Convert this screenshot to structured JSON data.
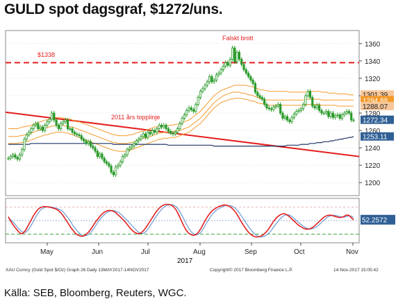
{
  "page": {
    "title": "GULD spot dagsgraf, $1272/uns.",
    "source": "Källa: SEB, Bloomberg, Reuters, WGC.",
    "footer_left": "XAU Curncy (Gold Spot $/Oz) Graph 26 Daily 13MAY2017-14NOV2017",
    "footer_mid": "Copyright© 2017 Bloomberg Finance L.P.",
    "footer_right": "14-Nov-2017 15:05:42"
  },
  "colors": {
    "candle": "#2a9a2a",
    "resistance": "#e41e1e",
    "trendline": "#e41e1e",
    "ma_band": "#f39a2b",
    "long_ma": "#1f3566",
    "stoch_k": "#e41e1e",
    "stoch_d": "#6a9ad0",
    "price_tag": "#2f5f95",
    "grid": "#cccccc"
  },
  "chart_data": [
    {
      "type": "candlestick",
      "ylim": [
        1185,
        1375
      ],
      "yticks": [
        1200,
        1220,
        1240,
        1260,
        1280,
        1300,
        1320,
        1340,
        1360
      ],
      "xticks": [
        "May",
        "Jun",
        "Jul",
        "Aug",
        "Sep",
        "Oct",
        "Nov"
      ],
      "xlabel_year": "2017",
      "annotations": {
        "resistance_label": "$1338",
        "resistance_value": 1338,
        "false_break_label": "Falskt brott",
        "trendline_label": "2011 års topplinje",
        "trendline": {
          "start": 1281,
          "end": 1230
        }
      },
      "price_tags": [
        {
          "label": "1301.39",
          "value": 1301.4
        },
        {
          "label": "1294.88",
          "value": 1294.9
        },
        {
          "label": "1288.07",
          "value": 1288.1
        },
        {
          "label": "1272.34",
          "value": 1272.3
        },
        {
          "label": "1253.11",
          "value": 1253.1
        }
      ],
      "series": {
        "close": [
          1228,
          1230,
          1232,
          1229,
          1227,
          1232,
          1238,
          1250,
          1255,
          1258,
          1262,
          1266,
          1268,
          1262,
          1264,
          1260,
          1266,
          1270,
          1273,
          1280,
          1272,
          1266,
          1262,
          1268,
          1270,
          1272,
          1262,
          1262,
          1258,
          1256,
          1255,
          1254,
          1250,
          1248,
          1245,
          1247,
          1242,
          1240,
          1236,
          1230,
          1233,
          1228,
          1224,
          1222,
          1219,
          1212,
          1209,
          1218,
          1220,
          1224,
          1230,
          1232,
          1238,
          1240,
          1242,
          1245,
          1248,
          1250,
          1253,
          1256,
          1252,
          1258,
          1256,
          1260,
          1258,
          1262,
          1266,
          1264,
          1266,
          1262,
          1259,
          1257,
          1256,
          1258,
          1262,
          1268,
          1274,
          1278,
          1283,
          1286,
          1284,
          1282,
          1290,
          1298,
          1305,
          1308,
          1312,
          1316,
          1322,
          1316,
          1318,
          1324,
          1326,
          1330,
          1334,
          1338,
          1335,
          1342,
          1355,
          1339,
          1350,
          1342,
          1336,
          1330,
          1326,
          1322,
          1318,
          1314,
          1304,
          1300,
          1298,
          1296,
          1290,
          1286,
          1285,
          1284,
          1287,
          1288,
          1290,
          1280,
          1274,
          1276,
          1272,
          1270,
          1275,
          1279,
          1282,
          1283,
          1285,
          1290,
          1300,
          1305,
          1298,
          1288,
          1286,
          1289,
          1283,
          1280,
          1280,
          1282,
          1276,
          1280,
          1275,
          1277,
          1278,
          1274,
          1278,
          1280,
          1282,
          1280,
          1272,
          1272
        ],
        "ma_upper": [
          1262,
          1262,
          1262,
          1262,
          1262,
          1263,
          1264,
          1264,
          1265,
          1265,
          1266,
          1267,
          1268,
          1269,
          1270,
          1271,
          1272,
          1272,
          1273,
          1274,
          1275,
          1275,
          1275,
          1275,
          1274,
          1274,
          1273,
          1273,
          1272,
          1271,
          1270,
          1270,
          1269,
          1268,
          1267,
          1266,
          1265,
          1264,
          1263,
          1262,
          1261,
          1260,
          1259,
          1258,
          1257,
          1256,
          1255,
          1255,
          1254,
          1254,
          1254,
          1254,
          1254,
          1255,
          1255,
          1256,
          1257,
          1258,
          1259,
          1259,
          1260,
          1261,
          1262,
          1263,
          1264,
          1264,
          1265,
          1265,
          1265,
          1266,
          1266,
          1266,
          1266,
          1267,
          1267,
          1268,
          1269,
          1270,
          1271,
          1272,
          1274,
          1276,
          1278,
          1280,
          1282,
          1285,
          1288,
          1291,
          1294,
          1297,
          1300,
          1302,
          1304,
          1306,
          1307,
          1308,
          1309,
          1310,
          1311,
          1312,
          1312,
          1312,
          1312,
          1312,
          1312,
          1311,
          1311,
          1310,
          1309,
          1308,
          1307,
          1307,
          1306,
          1306,
          1305,
          1305,
          1305,
          1305,
          1305,
          1305,
          1305,
          1305,
          1305,
          1304,
          1304,
          1304,
          1304,
          1304,
          1304,
          1304,
          1304,
          1305,
          1305,
          1305,
          1305,
          1305,
          1305,
          1304,
          1304,
          1304,
          1303,
          1303,
          1303,
          1303,
          1302,
          1302,
          1302,
          1302,
          1302,
          1301,
          1301,
          1301
        ],
        "ma_middle": [
          1253,
          1253,
          1253,
          1253,
          1253,
          1254,
          1254,
          1255,
          1255,
          1256,
          1257,
          1258,
          1259,
          1260,
          1261,
          1262,
          1263,
          1263,
          1264,
          1265,
          1265,
          1266,
          1266,
          1266,
          1266,
          1265,
          1265,
          1264,
          1264,
          1263,
          1262,
          1261,
          1260,
          1259,
          1258,
          1257,
          1256,
          1255,
          1254,
          1253,
          1252,
          1251,
          1250,
          1249,
          1248,
          1247,
          1246,
          1246,
          1245,
          1245,
          1245,
          1245,
          1245,
          1246,
          1246,
          1247,
          1248,
          1249,
          1250,
          1251,
          1251,
          1252,
          1253,
          1254,
          1255,
          1256,
          1257,
          1257,
          1258,
          1258,
          1258,
          1258,
          1259,
          1259,
          1260,
          1260,
          1261,
          1262,
          1263,
          1264,
          1266,
          1268,
          1270,
          1272,
          1274,
          1277,
          1280,
          1283,
          1286,
          1289,
          1292,
          1294,
          1296,
          1298,
          1300,
          1301,
          1302,
          1303,
          1304,
          1304,
          1304,
          1304,
          1303,
          1303,
          1302,
          1301,
          1301,
          1300,
          1299,
          1298,
          1297,
          1296,
          1296,
          1295,
          1295,
          1295,
          1295,
          1295,
          1295,
          1295,
          1295,
          1295,
          1295,
          1295,
          1295,
          1295,
          1295,
          1295,
          1295,
          1295,
          1295,
          1296,
          1296,
          1296,
          1296,
          1296,
          1296,
          1295,
          1295,
          1295,
          1295,
          1295,
          1295,
          1295,
          1295,
          1295,
          1295,
          1295,
          1295,
          1295,
          1295,
          1295
        ],
        "ma_lower": [
          1245,
          1245,
          1245,
          1245,
          1245,
          1246,
          1246,
          1247,
          1247,
          1248,
          1249,
          1250,
          1251,
          1252,
          1253,
          1254,
          1255,
          1255,
          1256,
          1257,
          1257,
          1258,
          1258,
          1258,
          1258,
          1257,
          1257,
          1256,
          1255,
          1254,
          1253,
          1252,
          1251,
          1250,
          1249,
          1248,
          1247,
          1246,
          1245,
          1244,
          1243,
          1242,
          1241,
          1240,
          1239,
          1238,
          1237,
          1237,
          1236,
          1236,
          1236,
          1236,
          1237,
          1237,
          1238,
          1239,
          1240,
          1241,
          1242,
          1243,
          1244,
          1245,
          1246,
          1247,
          1248,
          1249,
          1250,
          1250,
          1251,
          1251,
          1251,
          1252,
          1252,
          1252,
          1253,
          1254,
          1255,
          1256,
          1257,
          1258,
          1260,
          1262,
          1264,
          1266,
          1268,
          1271,
          1274,
          1277,
          1280,
          1283,
          1286,
          1288,
          1290,
          1292,
          1293,
          1294,
          1295,
          1296,
          1296,
          1297,
          1297,
          1297,
          1297,
          1296,
          1296,
          1295,
          1294,
          1294,
          1293,
          1292,
          1291,
          1291,
          1290,
          1290,
          1289,
          1289,
          1289,
          1289,
          1289,
          1289,
          1289,
          1289,
          1289,
          1289,
          1289,
          1289,
          1289,
          1289,
          1289,
          1289,
          1289,
          1290,
          1290,
          1290,
          1290,
          1290,
          1290,
          1289,
          1289,
          1289,
          1289,
          1289,
          1289,
          1289,
          1288,
          1288,
          1288,
          1288,
          1288,
          1288,
          1288,
          1288
        ],
        "long_ma": [
          1244,
          1244,
          1244,
          1244,
          1244,
          1244,
          1244,
          1244,
          1244,
          1244,
          1245,
          1245,
          1245,
          1245,
          1245,
          1245,
          1245,
          1245,
          1245,
          1245,
          1245,
          1245,
          1245,
          1245,
          1245,
          1245,
          1245,
          1245,
          1245,
          1245,
          1245,
          1245,
          1245,
          1245,
          1245,
          1245,
          1245,
          1245,
          1245,
          1245,
          1245,
          1245,
          1245,
          1245,
          1245,
          1245,
          1244,
          1244,
          1244,
          1244,
          1244,
          1244,
          1244,
          1244,
          1244,
          1244,
          1244,
          1244,
          1244,
          1244,
          1244,
          1244,
          1244,
          1244,
          1244,
          1244,
          1244,
          1244,
          1244,
          1244,
          1243,
          1243,
          1243,
          1243,
          1243,
          1243,
          1243,
          1243,
          1243,
          1243,
          1243,
          1243,
          1243,
          1243,
          1243,
          1243,
          1243,
          1243,
          1243,
          1243,
          1242,
          1242,
          1242,
          1242,
          1242,
          1242,
          1242,
          1242,
          1242,
          1242,
          1242,
          1242,
          1242,
          1242,
          1242,
          1242,
          1242,
          1242,
          1242,
          1242,
          1242,
          1242,
          1242,
          1242,
          1242,
          1242,
          1242,
          1242,
          1242,
          1242,
          1242,
          1242,
          1243,
          1243,
          1243,
          1243,
          1243,
          1243,
          1244,
          1244,
          1244,
          1244,
          1245,
          1245,
          1245,
          1246,
          1246,
          1246,
          1247,
          1247,
          1247,
          1248,
          1248,
          1249,
          1249,
          1250,
          1250,
          1251,
          1251,
          1252,
          1252,
          1253
        ]
      }
    },
    {
      "type": "line",
      "name": "stochastic",
      "ylim": [
        0,
        100
      ],
      "reference_lines": [
        85,
        50,
        15
      ],
      "price_tags": [
        {
          "label": "52.2572",
          "value": 52.26
        }
      ],
      "series": {
        "k": [
          60,
          48,
          38,
          30,
          22,
          16,
          18,
          26,
          38,
          50,
          62,
          72,
          80,
          84,
          86,
          86,
          85,
          84,
          82,
          80,
          76,
          70,
          62,
          52,
          42,
          32,
          24,
          16,
          12,
          10,
          10,
          14,
          20,
          28,
          38,
          48,
          56,
          64,
          70,
          74,
          76,
          76,
          74,
          70,
          64,
          58,
          52,
          44,
          36,
          28,
          22,
          18,
          16,
          18,
          24,
          32,
          42,
          52,
          62,
          72,
          80,
          86,
          90,
          92,
          92,
          90,
          86,
          78,
          66,
          52,
          38,
          26,
          18,
          14,
          12,
          14,
          20,
          30,
          42,
          54,
          64,
          72,
          78,
          82,
          86,
          88,
          90,
          90,
          88,
          84,
          78,
          70,
          60,
          48,
          38,
          28,
          20,
          14,
          10,
          8,
          8,
          10,
          14,
          20,
          28,
          38,
          48,
          56,
          62,
          66,
          68,
          66,
          62,
          56,
          50,
          44,
          38,
          34,
          30,
          28,
          28,
          30,
          34,
          40,
          46,
          52,
          58,
          62,
          64,
          64,
          62,
          60,
          58,
          58,
          60,
          64,
          64,
          58,
          52
        ],
        "d": [
          56,
          52,
          46,
          38,
          30,
          24,
          20,
          20,
          26,
          36,
          48,
          60,
          70,
          78,
          82,
          85,
          86,
          85,
          84,
          82,
          80,
          77,
          72,
          64,
          56,
          46,
          36,
          28,
          20,
          14,
          11,
          11,
          14,
          20,
          28,
          38,
          48,
          56,
          63,
          69,
          73,
          75,
          76,
          74,
          71,
          66,
          60,
          54,
          47,
          40,
          33,
          26,
          20,
          17,
          17,
          22,
          30,
          40,
          50,
          60,
          69,
          77,
          84,
          88,
          90,
          91,
          90,
          86,
          79,
          68,
          56,
          43,
          31,
          22,
          16,
          13,
          15,
          20,
          30,
          41,
          52,
          62,
          70,
          76,
          80,
          84,
          87,
          89,
          89,
          88,
          85,
          80,
          73,
          64,
          54,
          44,
          35,
          26,
          19,
          13,
          9,
          8,
          9,
          12,
          17,
          24,
          33,
          42,
          50,
          57,
          62,
          65,
          65,
          62,
          57,
          51,
          45,
          40,
          35,
          31,
          29,
          28,
          30,
          33,
          38,
          44,
          50,
          56,
          60,
          63,
          64,
          63,
          61,
          60,
          59,
          60,
          62,
          62,
          58
        ]
      }
    }
  ]
}
